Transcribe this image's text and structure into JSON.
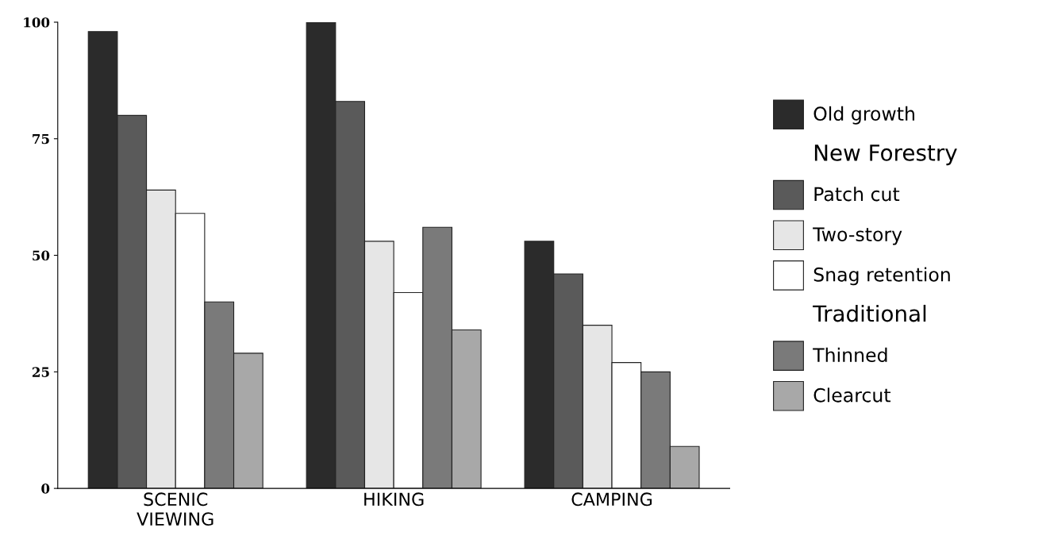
{
  "chart_data": {
    "type": "bar",
    "categories": [
      "SCENIC\nVIEWING",
      "HIKING",
      "CAMPING"
    ],
    "series": [
      {
        "name": "Old growth",
        "color": "#2b2b2b",
        "values": [
          98,
          100,
          53
        ]
      },
      {
        "name": "Patch cut",
        "color": "#5a5a5a",
        "values": [
          80,
          83,
          46
        ]
      },
      {
        "name": "Two-story",
        "color": "#e6e6e6",
        "values": [
          64,
          53,
          35
        ]
      },
      {
        "name": "Snag retention",
        "color": "#ffffff",
        "values": [
          59,
          42,
          27
        ]
      },
      {
        "name": "Thinned",
        "color": "#7a7a7a",
        "values": [
          40,
          56,
          25
        ]
      },
      {
        "name": "Clearcut",
        "color": "#a8a8a8",
        "values": [
          29,
          34,
          9
        ]
      }
    ],
    "annotations": [
      "New Forestry",
      "Traditional"
    ],
    "ylim": [
      0,
      100
    ],
    "yticks": [
      0,
      25,
      50,
      75,
      100
    ],
    "grid": false,
    "legend": "right"
  }
}
